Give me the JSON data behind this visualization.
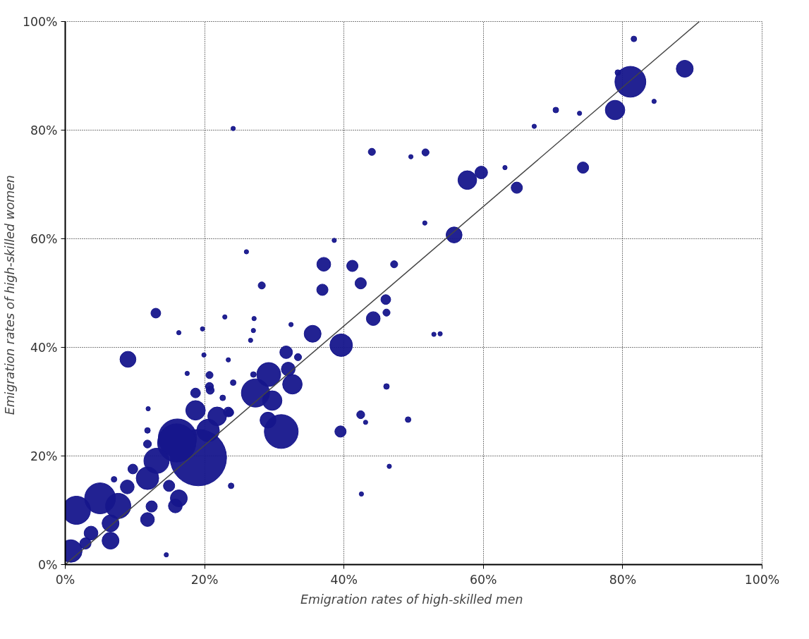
{
  "chart_data": {
    "type": "bubble",
    "xlabel": "Emigration rates of high-skilled  men",
    "ylabel": "Emigration rates of high-skilled  women",
    "xlim": [
      0,
      100
    ],
    "ylim": [
      0,
      100
    ],
    "xticks": [
      {
        "value": 0,
        "label": "0%"
      },
      {
        "value": 20,
        "label": "20%"
      },
      {
        "value": 40,
        "label": "40%"
      },
      {
        "value": 60,
        "label": "60%"
      },
      {
        "value": 80,
        "label": "80%"
      },
      {
        "value": 100,
        "label": "100%"
      }
    ],
    "yticks": [
      {
        "value": 0,
        "label": "0%"
      },
      {
        "value": 20,
        "label": "20%"
      },
      {
        "value": 40,
        "label": "40%"
      },
      {
        "value": 60,
        "label": "60%"
      },
      {
        "value": 80,
        "label": "80%"
      },
      {
        "value": 100,
        "label": "100%"
      }
    ],
    "grid": true,
    "series": [
      {
        "type": "bubble",
        "color": "#16168c",
        "x": [
          19.1,
          16.1,
          16.0,
          5.0,
          1.6,
          7.6,
          0.8,
          20.5,
          13.1,
          11.8,
          18.7,
          21.8,
          23.4,
          16.3,
          15.8,
          11.8,
          12.4,
          6.5,
          3.7,
          6.5,
          2.9,
          9.7,
          7.0,
          8.9,
          14.9,
          14.5,
          23.8,
          13.0,
          9.0,
          16.3,
          11.9,
          11.8,
          11.8,
          18.7,
          20.7,
          20.7,
          20.8,
          22.6,
          24.1,
          22.9,
          19.7,
          19.9,
          23.4,
          17.5,
          23.6,
          24.1,
          26.0,
          38.6,
          37.1,
          41.2,
          47.2,
          28.2,
          42.4,
          36.9,
          46.0,
          46.1,
          44.2,
          27.1,
          27.0,
          26.6,
          32.4,
          35.5,
          39.6,
          52.9,
          53.8,
          31.7,
          33.4,
          29.2,
          32.0,
          27.0,
          32.6,
          27.3,
          29.7,
          46.1,
          29.1,
          31.0,
          42.4,
          43.1,
          49.2,
          39.5,
          42.5,
          46.5,
          44.0,
          49.6,
          51.7,
          51.6,
          55.8,
          57.7,
          59.7,
          63.1,
          64.8,
          74.3,
          67.3,
          70.4,
          73.8,
          78.9,
          84.5,
          79.3,
          81.1,
          88.9,
          81.6
        ],
        "values": [
          19.7,
          23.3,
          22.4,
          12.2,
          10.0,
          10.8,
          2.5,
          24.7,
          19.1,
          15.9,
          28.4,
          27.3,
          28.1,
          12.2,
          10.8,
          8.3,
          10.7,
          7.6,
          5.8,
          4.4,
          3.9,
          17.6,
          15.7,
          14.3,
          14.5,
          1.8,
          14.5,
          46.3,
          37.8,
          42.7,
          28.7,
          24.7,
          22.2,
          31.6,
          34.9,
          32.8,
          32.1,
          30.7,
          33.5,
          45.6,
          43.4,
          38.6,
          37.7,
          35.2,
          28.0,
          80.3,
          57.6,
          59.7,
          55.3,
          55.0,
          55.3,
          51.4,
          51.8,
          50.6,
          48.8,
          46.4,
          45.3,
          45.3,
          43.1,
          41.3,
          44.2,
          42.5,
          40.4,
          42.4,
          42.5,
          39.1,
          38.2,
          35.0,
          36.0,
          35.0,
          33.2,
          31.6,
          30.2,
          32.8,
          26.6,
          24.5,
          27.6,
          26.2,
          26.7,
          24.5,
          13.0,
          18.1,
          76.0,
          75.1,
          75.9,
          62.9,
          60.7,
          70.8,
          72.2,
          73.1,
          69.4,
          73.1,
          80.7,
          83.7,
          83.1,
          83.7,
          85.3,
          90.6,
          88.9,
          91.3,
          96.8
        ],
        "sizes": [
          1,
          0.46,
          0.46,
          0.3,
          0.25,
          0.2,
          0.16,
          0.16,
          0.2,
          0.16,
          0.12,
          0.11,
          0.03,
          0.09,
          0.06,
          0.06,
          0.04,
          0.09,
          0.06,
          0.09,
          0.04,
          0.03,
          0.01,
          0.06,
          0.04,
          0.006,
          0.01,
          0.03,
          0.08,
          0.006,
          0.006,
          0.01,
          0.02,
          0.03,
          0.016,
          0.02,
          0.02,
          0.01,
          0.01,
          0.006,
          0.006,
          0.006,
          0.006,
          0.006,
          0.02,
          0.006,
          0.006,
          0.006,
          0.06,
          0.04,
          0.016,
          0.016,
          0.04,
          0.04,
          0.03,
          0.016,
          0.06,
          0.006,
          0.006,
          0.006,
          0.006,
          0.09,
          0.16,
          0.006,
          0.006,
          0.05,
          0.016,
          0.18,
          0.06,
          0.01,
          0.12,
          0.25,
          0.12,
          0.01,
          0.08,
          0.36,
          0.02,
          0.006,
          0.01,
          0.04,
          0.006,
          0.006,
          0.016,
          0.006,
          0.016,
          0.006,
          0.08,
          0.11,
          0.05,
          0.006,
          0.04,
          0.04,
          0.006,
          0.01,
          0.006,
          0.12,
          0.006,
          0.01,
          0.3,
          0.09,
          0.01
        ]
      },
      {
        "type": "line",
        "color": "#444444",
        "x": [
          0,
          91
        ],
        "values": [
          0,
          100
        ]
      }
    ]
  }
}
